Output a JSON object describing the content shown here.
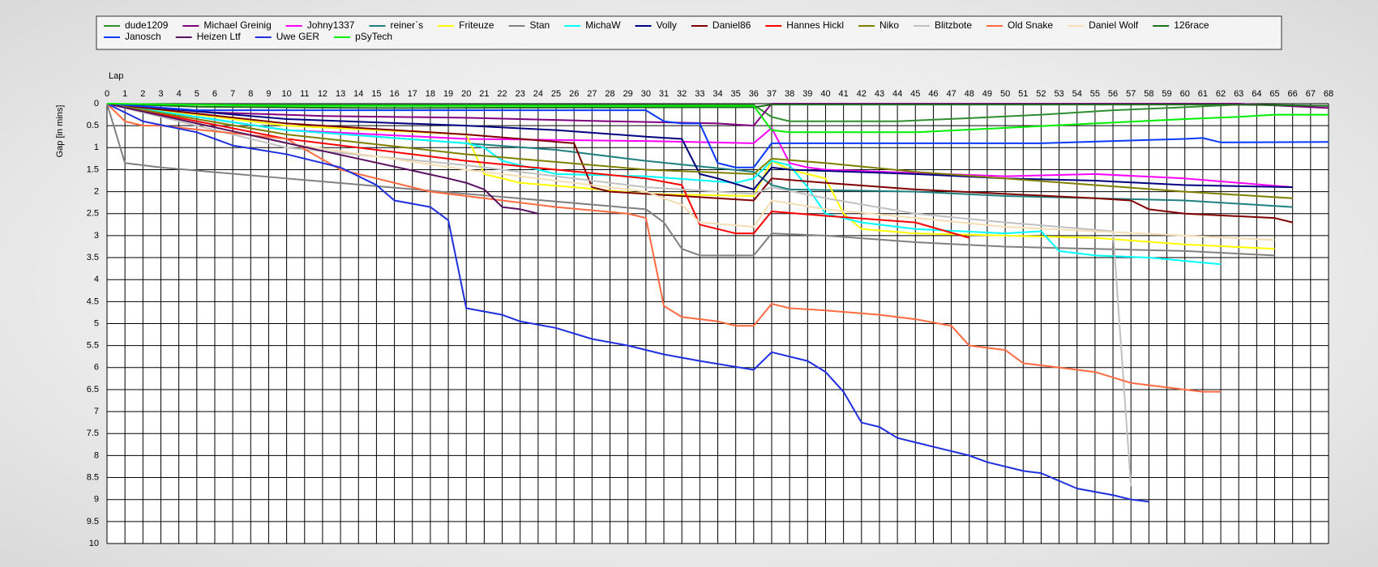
{
  "chart_data": {
    "type": "line",
    "x_label": "Lap",
    "y_label": "Gap [in mins]",
    "xlim": [
      0,
      68
    ],
    "xticks": [
      0,
      1,
      2,
      3,
      4,
      5,
      6,
      7,
      8,
      9,
      10,
      11,
      12,
      13,
      14,
      15,
      16,
      17,
      18,
      19,
      20,
      21,
      22,
      23,
      24,
      25,
      26,
      27,
      28,
      29,
      30,
      31,
      32,
      33,
      34,
      35,
      36,
      37,
      38,
      39,
      40,
      41,
      42,
      43,
      44,
      45,
      46,
      47,
      48,
      49,
      50,
      51,
      52,
      53,
      54,
      55,
      56,
      57,
      58,
      59,
      60,
      61,
      62,
      63,
      64,
      65,
      66,
      67,
      68
    ],
    "ylim": [
      10,
      0
    ],
    "yticks": [
      0,
      0.5,
      1,
      1.5,
      2,
      2.5,
      3,
      3.5,
      4,
      4.5,
      5,
      5.5,
      6,
      6.5,
      7,
      7.5,
      8,
      8.5,
      9,
      9.5,
      10
    ],
    "grid": true,
    "legend": "top",
    "series": [
      {
        "name": "dude1209",
        "color": "#2f8f2f",
        "x": [
          0,
          1,
          2,
          36,
          37,
          38,
          44,
          48,
          52,
          56,
          60,
          63,
          65,
          68
        ],
        "values": [
          0,
          0.02,
          0.02,
          0.03,
          0.3,
          0.4,
          0.4,
          0.33,
          0.25,
          0.15,
          0.08,
          0.02,
          0.03,
          0.05
        ]
      },
      {
        "name": "Michael Greinig",
        "color": "#800080",
        "x": [
          0,
          6,
          12,
          20,
          28,
          34,
          36,
          37,
          63,
          68
        ],
        "values": [
          0,
          0.2,
          0.28,
          0.32,
          0.4,
          0.45,
          0.5,
          0,
          0,
          0.1
        ]
      },
      {
        "name": "Johny1337",
        "color": "#ff00ff",
        "x": [
          0,
          10,
          20,
          30,
          36,
          37,
          38,
          39,
          40,
          50,
          55,
          60,
          66
        ],
        "values": [
          0,
          0.6,
          0.8,
          0.85,
          0.9,
          0.55,
          1.35,
          1.45,
          1.5,
          1.65,
          1.6,
          1.7,
          1.9
        ]
      },
      {
        "name": "reiner`s",
        "color": "#208080",
        "x": [
          0,
          10,
          20,
          25,
          30,
          36,
          37,
          38,
          45,
          50,
          55,
          60,
          66
        ],
        "values": [
          0,
          0.6,
          0.9,
          1.05,
          1.3,
          1.55,
          1.85,
          1.95,
          2.0,
          2.1,
          2.15,
          2.2,
          2.35
        ]
      },
      {
        "name": "Friteuze",
        "color": "#ffff00",
        "x": [
          0,
          10,
          20,
          21,
          23,
          26,
          30,
          36,
          37,
          38,
          40,
          41,
          42,
          45,
          50,
          55,
          60,
          65
        ],
        "values": [
          0,
          0.5,
          0.7,
          1.6,
          1.8,
          1.9,
          2.05,
          2.1,
          1.3,
          1.5,
          1.7,
          2.5,
          2.85,
          2.95,
          3.0,
          3.05,
          3.2,
          3.3
        ]
      },
      {
        "name": "Stan",
        "color": "#808080",
        "x": [
          0,
          1,
          3,
          10,
          20,
          30,
          31,
          32,
          33,
          36,
          37,
          40,
          45,
          50,
          55,
          60,
          65
        ],
        "values": [
          0,
          1.35,
          1.45,
          1.7,
          2.05,
          2.4,
          2.7,
          3.3,
          3.45,
          3.45,
          2.95,
          3.0,
          3.15,
          3.25,
          3.3,
          3.35,
          3.45
        ]
      },
      {
        "name": "MichaW",
        "color": "#00ffff",
        "x": [
          0,
          10,
          20,
          21,
          22,
          25,
          30,
          35,
          36,
          37,
          38,
          39,
          40,
          42,
          45,
          50,
          52,
          53,
          55,
          58,
          62
        ],
        "values": [
          0,
          0.6,
          0.9,
          1.0,
          1.3,
          1.6,
          1.65,
          1.8,
          1.7,
          1.3,
          1.4,
          1.9,
          2.5,
          2.7,
          2.85,
          2.95,
          2.9,
          3.35,
          3.45,
          3.5,
          3.65
        ]
      },
      {
        "name": "Volly",
        "color": "#000080",
        "x": [
          0,
          10,
          20,
          25,
          30,
          32,
          33,
          34,
          36,
          37,
          38,
          45,
          50,
          55,
          60,
          66
        ],
        "values": [
          0,
          0.35,
          0.5,
          0.6,
          0.75,
          0.8,
          1.6,
          1.7,
          1.95,
          1.45,
          1.5,
          1.6,
          1.7,
          1.75,
          1.85,
          1.9
        ]
      },
      {
        "name": "Daniel86",
        "color": "#800000",
        "x": [
          0,
          10,
          20,
          26,
          27,
          28,
          30,
          36,
          37,
          40,
          45,
          50,
          55,
          57,
          58,
          60,
          65,
          66
        ],
        "values": [
          0,
          0.45,
          0.7,
          0.9,
          1.9,
          2.0,
          2.05,
          2.2,
          1.7,
          1.8,
          1.95,
          2.05,
          2.15,
          2.2,
          2.4,
          2.5,
          2.6,
          2.7
        ]
      },
      {
        "name": "Hannes Hickl",
        "color": "#ff0000",
        "x": [
          0,
          10,
          20,
          25,
          30,
          32,
          33,
          35,
          36,
          37,
          40,
          45,
          48
        ],
        "values": [
          0,
          0.8,
          1.3,
          1.5,
          1.7,
          1.85,
          2.75,
          2.95,
          2.95,
          2.45,
          2.55,
          2.7,
          3.05
        ]
      },
      {
        "name": "Niko",
        "color": "#808000",
        "x": [
          0,
          10,
          20,
          30,
          36,
          37,
          40,
          45,
          50,
          55,
          60,
          66
        ],
        "values": [
          0,
          0.7,
          1.15,
          1.5,
          1.6,
          1.25,
          1.35,
          1.55,
          1.7,
          1.85,
          2.0,
          2.15
        ]
      },
      {
        "name": "Blitzbote",
        "color": "#c0c0c0",
        "x": [
          0,
          10,
          20,
          30,
          36,
          37,
          40,
          45,
          50,
          56,
          57
        ],
        "values": [
          0,
          1.0,
          1.4,
          1.9,
          2.05,
          1.9,
          2.15,
          2.5,
          2.7,
          2.9,
          8.7
        ]
      },
      {
        "name": "Old Snake",
        "color": "#ff6a40",
        "x": [
          0,
          1,
          2,
          3,
          10,
          13,
          16,
          18,
          20,
          25,
          29,
          30,
          31,
          32,
          34,
          35,
          36,
          37,
          38,
          40,
          43,
          45,
          47,
          48,
          50,
          51,
          53,
          55,
          57,
          60,
          61,
          62
        ],
        "values": [
          0,
          0.4,
          0.5,
          0.5,
          0.8,
          1.5,
          1.8,
          2.0,
          2.1,
          2.35,
          2.5,
          2.6,
          4.6,
          4.85,
          4.95,
          5.05,
          5.05,
          4.55,
          4.65,
          4.7,
          4.8,
          4.9,
          5.05,
          5.5,
          5.6,
          5.9,
          6.0,
          6.1,
          6.35,
          6.5,
          6.55,
          6.55
        ]
      },
      {
        "name": "Daniel Wolf",
        "color": "#f5deb3",
        "x": [
          0,
          10,
          20,
          30,
          32,
          33,
          36,
          37,
          40,
          45,
          50,
          55,
          60,
          65
        ],
        "values": [
          0,
          0.9,
          1.5,
          2.0,
          2.3,
          2.7,
          2.8,
          2.2,
          2.4,
          2.6,
          2.8,
          2.9,
          3.0,
          3.1
        ]
      },
      {
        "name": "126race",
        "color": "#1f6f1f",
        "x": [
          0,
          5,
          15,
          36,
          37,
          38,
          45,
          50,
          56,
          62,
          68
        ],
        "values": [
          0,
          0.07,
          0.1,
          0.08,
          0.02,
          0.02,
          0.02,
          0.02,
          0.02,
          0.02,
          0.05
        ]
      },
      {
        "name": "Janosch",
        "color": "#0a3aff",
        "x": [
          0,
          5,
          30,
          31,
          32,
          33,
          34,
          35,
          36,
          37,
          52,
          60,
          61,
          62,
          68
        ],
        "values": [
          0,
          0.15,
          0.15,
          0.4,
          0.45,
          0.45,
          1.35,
          1.45,
          1.45,
          0.9,
          0.9,
          0.8,
          0.78,
          0.88,
          0.87
        ]
      },
      {
        "name": "Heizen Ltf",
        "color": "#5a1060",
        "x": [
          0,
          19,
          20,
          21,
          22,
          23,
          24
        ],
        "values": [
          0,
          1.7,
          1.8,
          1.95,
          2.35,
          2.4,
          2.5
        ]
      },
      {
        "name": "Uwe GER",
        "color": "#1f2fe0",
        "x": [
          0,
          2,
          5,
          7,
          10,
          13,
          15,
          16,
          18,
          19,
          20,
          22,
          23,
          25,
          27,
          29,
          31,
          33,
          36,
          37,
          39,
          40,
          41,
          42,
          43,
          44,
          45,
          48,
          49,
          51,
          52,
          54,
          56,
          57,
          58
        ],
        "values": [
          0,
          0.4,
          0.65,
          0.95,
          1.15,
          1.45,
          1.85,
          2.2,
          2.35,
          2.65,
          4.65,
          4.8,
          4.95,
          5.1,
          5.35,
          5.5,
          5.7,
          5.85,
          6.05,
          5.65,
          5.85,
          6.1,
          6.55,
          7.25,
          7.35,
          7.6,
          7.7,
          8.0,
          8.15,
          8.35,
          8.4,
          8.75,
          8.9,
          9.0,
          9.05
        ]
      },
      {
        "name": "pSyTech",
        "color": "#00ee00",
        "x": [
          0,
          10,
          36,
          37,
          38,
          45,
          50,
          55,
          60,
          63,
          65,
          68
        ],
        "values": [
          0,
          0.05,
          0.05,
          0.6,
          0.65,
          0.65,
          0.55,
          0.45,
          0.35,
          0.3,
          0.25,
          0.25
        ]
      }
    ]
  }
}
